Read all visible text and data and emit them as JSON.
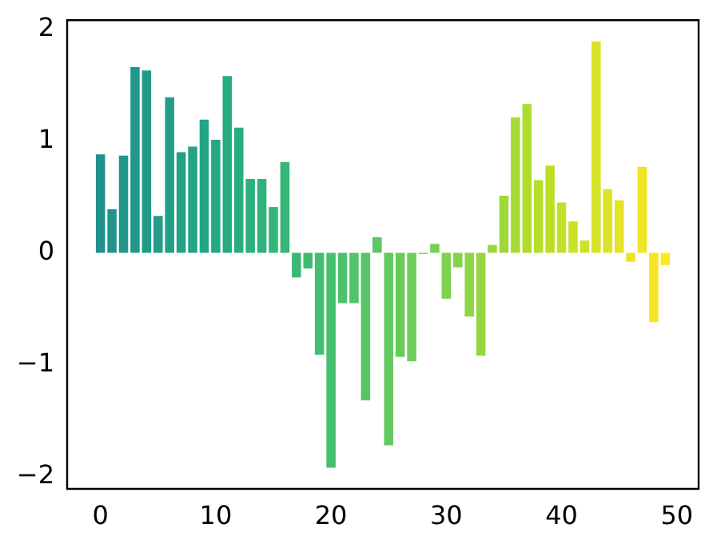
{
  "chart_data": {
    "type": "bar",
    "x": [
      0,
      1,
      2,
      3,
      4,
      5,
      6,
      7,
      8,
      9,
      10,
      11,
      12,
      13,
      14,
      15,
      16,
      17,
      18,
      19,
      20,
      21,
      22,
      23,
      24,
      25,
      26,
      27,
      28,
      29,
      30,
      31,
      32,
      33,
      34,
      35,
      36,
      37,
      38,
      39,
      40,
      41,
      42,
      43,
      44,
      45,
      46,
      47,
      48,
      49
    ],
    "values": [
      0.88,
      0.39,
      0.87,
      1.66,
      1.63,
      0.33,
      1.39,
      0.9,
      0.95,
      1.19,
      1.01,
      1.58,
      1.12,
      0.66,
      0.66,
      0.41,
      0.81,
      -0.22,
      -0.14,
      -0.91,
      -1.92,
      -0.45,
      -0.45,
      -1.32,
      0.14,
      -1.72,
      -0.93,
      -0.97,
      -0.01,
      0.08,
      -0.41,
      -0.13,
      -0.57,
      -0.92,
      0.07,
      0.51,
      1.21,
      1.33,
      0.65,
      0.78,
      0.45,
      0.28,
      0.11,
      1.89,
      0.57,
      0.47,
      -0.08,
      0.77,
      -0.62,
      -0.11
    ],
    "colors": [
      "#21918c",
      "#21938b",
      "#21968a",
      "#219889",
      "#219a89",
      "#229d88",
      "#229f87",
      "#22a186",
      "#22a486",
      "#22a685",
      "#23a884",
      "#26ab82",
      "#29ad80",
      "#2db07e",
      "#30b27b",
      "#34b479",
      "#37b777",
      "#3ab975",
      "#3ebb73",
      "#41be71",
      "#46c06f",
      "#4cc26c",
      "#51c369",
      "#57c566",
      "#5cc763",
      "#62c960",
      "#67cb5c",
      "#6dcd5a",
      "#72ce56",
      "#78d053",
      "#7ed24e",
      "#85d34a",
      "#8cd545",
      "#93d641",
      "#99d83c",
      "#a0d937",
      "#a7da33",
      "#aedc2e",
      "#b5dd2a",
      "#bcdf25",
      "#c2e026",
      "#c9e126",
      "#cfe126",
      "#d6e226",
      "#dce326",
      "#e3e425",
      "#e9e525",
      "#f0e525",
      "#f7e625",
      "#fde725"
    ],
    "xlim": [
      -2.89,
      51.89
    ],
    "xticks": [
      0,
      10,
      20,
      30,
      40,
      50
    ],
    "ylim": [
      -2.11,
      2.08
    ],
    "yticks": [
      -2,
      -1,
      0,
      1,
      2
    ],
    "grid": false,
    "legend": false
  }
}
